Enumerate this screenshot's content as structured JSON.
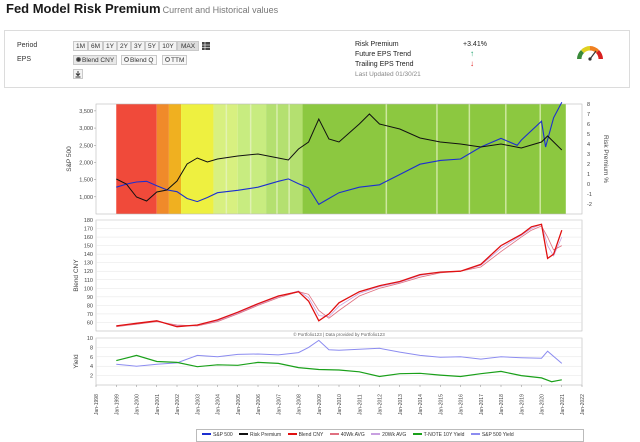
{
  "header": {
    "title": "Fed Model Risk Premium",
    "subtitle": "Current and Historical values"
  },
  "controls": {
    "period_label": "Period",
    "period_buttons": [
      "1M",
      "6M",
      "1Y",
      "2Y",
      "3Y",
      "5Y",
      "10Y",
      "MAX"
    ],
    "period_selected": "MAX",
    "eps_label": "EPS",
    "eps_options": [
      "Blend CNY",
      "Blend Q",
      "TTM"
    ],
    "eps_selected": "Blend CNY",
    "table_icon": "table-icon",
    "download_icon": "download-icon"
  },
  "stats": {
    "risk_premium_label": "Risk Premium",
    "risk_premium_value": "+3.41%",
    "future_eps_label": "Future EPS Trend",
    "future_eps_direction": "up",
    "trailing_eps_label": "Trailing EPS Trend",
    "trailing_eps_direction": "down",
    "last_updated": "Last Updated 01/30/21",
    "gauge_icon": "gauge-icon"
  },
  "colors": {
    "sp500": "#1c2fd0",
    "risk_premium": "#111111",
    "blend_cny": "#e01010",
    "avg40": "#e07080",
    "avg20": "#c8a0e0",
    "tnote": "#1aa01a",
    "sp500_yield": "#8c8cf0",
    "up_arrow": "#1aa06a",
    "down_arrow": "#e02020"
  },
  "chart_data": [
    {
      "type": "line",
      "ylabel": "S&P 500",
      "y2label": "Risk Premium %",
      "ylim": [
        500,
        3700
      ],
      "y2lim": [
        -3,
        8
      ],
      "yticks": [
        "1,000",
        "1,500",
        "2,000",
        "2,500",
        "3,000",
        "3,500"
      ],
      "y2ticks": [
        "-2",
        "-1",
        "0",
        "1",
        "2",
        "3",
        "4",
        "5",
        "6",
        "7",
        "8"
      ],
      "background_zones": [
        "red 1999-2001",
        "orange 2001-2002",
        "yellow 2002-2004",
        "light green 2004-2008",
        "green 2008-2021"
      ],
      "series": [
        {
          "name": "S&P 500",
          "x": [
            1999.0,
            1999.5,
            2000.0,
            2000.5,
            2001.0,
            2001.5,
            2002.0,
            2002.5,
            2003.0,
            2003.5,
            2004.0,
            2005.0,
            2006.0,
            2007.0,
            2007.5,
            2008.0,
            2008.5,
            2009.0,
            2009.5,
            2010.0,
            2011.0,
            2012.0,
            2013.0,
            2014.0,
            2015.0,
            2016.0,
            2017.0,
            2018.0,
            2018.8,
            2019.0,
            2020.0,
            2020.2,
            2020.6,
            2021.0
          ],
          "values": [
            1280,
            1370,
            1430,
            1450,
            1320,
            1200,
            1150,
            950,
            860,
            980,
            1120,
            1190,
            1280,
            1450,
            1520,
            1380,
            1260,
            780,
            950,
            1120,
            1280,
            1350,
            1650,
            1950,
            2060,
            2100,
            2450,
            2700,
            2500,
            2650,
            3200,
            2450,
            3300,
            3750
          ]
        },
        {
          "name": "Risk Premium",
          "x": [
            1999.0,
            1999.5,
            2000.0,
            2000.5,
            2001.0,
            2001.5,
            2002.0,
            2002.5,
            2003.0,
            2003.5,
            2004.0,
            2005.0,
            2006.0,
            2007.0,
            2007.5,
            2008.0,
            2008.5,
            2009.0,
            2009.5,
            2010.0,
            2011.0,
            2011.5,
            2012.0,
            2013.0,
            2014.0,
            2015.0,
            2016.0,
            2017.0,
            2018.0,
            2019.0,
            2020.0,
            2020.3,
            2021.0
          ],
          "values": [
            0.5,
            0.0,
            -1.3,
            -1.7,
            -0.8,
            -0.6,
            0.3,
            2.0,
            2.6,
            2.2,
            2.5,
            2.8,
            3.0,
            2.6,
            2.4,
            3.5,
            4.2,
            6.5,
            4.5,
            4.2,
            6.0,
            7.0,
            6.0,
            5.5,
            4.6,
            4.2,
            4.0,
            3.7,
            4.0,
            3.6,
            4.2,
            4.8,
            3.4
          ]
        }
      ]
    },
    {
      "type": "line",
      "ylabel": "Blend CNY",
      "ylim": [
        50,
        180
      ],
      "yticks": [
        "60",
        "70",
        "80",
        "90",
        "100",
        "110",
        "120",
        "130",
        "140",
        "150",
        "160",
        "170",
        "180"
      ],
      "series": [
        {
          "name": "Blend CNY",
          "x": [
            1999.0,
            2000.0,
            2001.0,
            2002.0,
            2003.0,
            2004.0,
            2005.0,
            2006.0,
            2007.0,
            2008.0,
            2008.5,
            2009.0,
            2009.5,
            2010.0,
            2011.0,
            2012.0,
            2013.0,
            2014.0,
            2015.0,
            2016.0,
            2017.0,
            2018.0,
            2019.0,
            2019.5,
            2020.0,
            2020.3,
            2020.6,
            2021.0
          ],
          "values": [
            56,
            59,
            62,
            55,
            57,
            63,
            72,
            82,
            91,
            96,
            85,
            62,
            70,
            83,
            96,
            103,
            108,
            116,
            119,
            120,
            128,
            150,
            163,
            172,
            175,
            135,
            140,
            168
          ]
        },
        {
          "name": "40Wk AVG",
          "x": [
            1999.0,
            2000.0,
            2001.0,
            2002.0,
            2003.0,
            2004.0,
            2005.0,
            2006.0,
            2007.0,
            2008.0,
            2008.5,
            2009.0,
            2009.5,
            2010.0,
            2011.0,
            2012.0,
            2013.0,
            2014.0,
            2015.0,
            2016.0,
            2017.0,
            2018.0,
            2019.0,
            2019.5,
            2020.0,
            2020.3,
            2020.6,
            2021.0
          ],
          "values": [
            55,
            58,
            61,
            57,
            56,
            61,
            70,
            80,
            89,
            96,
            93,
            74,
            65,
            74,
            91,
            100,
            106,
            113,
            118,
            120,
            125,
            143,
            160,
            168,
            173,
            160,
            145,
            150
          ]
        },
        {
          "name": "20Wk AVG",
          "x": [
            1999.0,
            2000.0,
            2001.0,
            2002.0,
            2003.0,
            2004.0,
            2005.0,
            2006.0,
            2007.0,
            2008.0,
            2008.5,
            2009.0,
            2009.5,
            2010.0,
            2011.0,
            2012.0,
            2013.0,
            2014.0,
            2015.0,
            2016.0,
            2017.0,
            2018.0,
            2019.0,
            2019.5,
            2020.0,
            2020.3,
            2020.6,
            2021.0
          ],
          "values": [
            56,
            58,
            62,
            56,
            56,
            62,
            71,
            81,
            90,
            97,
            89,
            68,
            67,
            79,
            94,
            102,
            107,
            115,
            119,
            120,
            127,
            147,
            162,
            170,
            175,
            150,
            138,
            160
          ]
        }
      ]
    },
    {
      "type": "line",
      "ylabel": "Yield",
      "ylim": [
        0,
        10
      ],
      "yticks": [
        "2",
        "4",
        "6",
        "8",
        "10"
      ],
      "x_start_label": "Jan-1998",
      "x_end_label": "Jan-2022",
      "series": [
        {
          "name": "T-NOTE 10Y Yield",
          "x": [
            1999.0,
            2000.0,
            2001.0,
            2002.0,
            2003.0,
            2004.0,
            2005.0,
            2006.0,
            2007.0,
            2008.0,
            2009.0,
            2010.0,
            2011.0,
            2012.0,
            2013.0,
            2014.0,
            2015.0,
            2016.0,
            2017.0,
            2018.0,
            2019.0,
            2020.0,
            2020.5,
            2021.0
          ],
          "values": [
            5.2,
            6.3,
            5.0,
            4.8,
            3.9,
            4.3,
            4.2,
            4.8,
            4.6,
            3.7,
            3.3,
            3.2,
            2.8,
            1.8,
            2.4,
            2.5,
            2.1,
            1.8,
            2.4,
            2.9,
            2.0,
            1.5,
            0.7,
            1.1
          ]
        },
        {
          "name": "S&P 500 Yield",
          "x": [
            1999.0,
            2000.0,
            2001.0,
            2002.0,
            2003.0,
            2004.0,
            2005.0,
            2006.0,
            2007.0,
            2008.0,
            2008.5,
            2009.0,
            2009.5,
            2010.0,
            2011.0,
            2012.0,
            2013.0,
            2014.0,
            2015.0,
            2016.0,
            2017.0,
            2018.0,
            2019.0,
            2020.0,
            2020.3,
            2021.0
          ],
          "values": [
            4.4,
            4.0,
            4.4,
            4.7,
            6.3,
            6.0,
            6.5,
            6.6,
            6.4,
            6.9,
            8.0,
            9.5,
            7.5,
            7.4,
            7.6,
            7.8,
            7.0,
            6.3,
            5.9,
            6.0,
            5.5,
            6.0,
            5.8,
            5.7,
            7.2,
            4.6
          ]
        }
      ]
    }
  ],
  "x_axis_labels": [
    "Jan-1998",
    "Jan-1999",
    "Jan-2000",
    "Jan-2001",
    "Jan-2002",
    "Jan-2003",
    "Jan-2004",
    "Jan-2005",
    "Jan-2006",
    "Jan-2007",
    "Jan-2008",
    "Jan-2009",
    "Jan-2010",
    "Jan-2011",
    "Jan-2012",
    "Jan-2013",
    "Jan-2014",
    "Jan-2015",
    "Jan-2016",
    "Jan-2017",
    "Jan-2018",
    "Jan-2019",
    "Jan-2020",
    "Jan-2021",
    "Jan-2022"
  ],
  "credits": "© Portfolio123 | Data provided by Portfolio123",
  "legend": [
    "S&P 500",
    "Risk Premium",
    "Blend CNY",
    "40Wk AVG",
    "20Wk AVG",
    "T-NOTE 10Y Yield",
    "S&P 500 Yield"
  ]
}
